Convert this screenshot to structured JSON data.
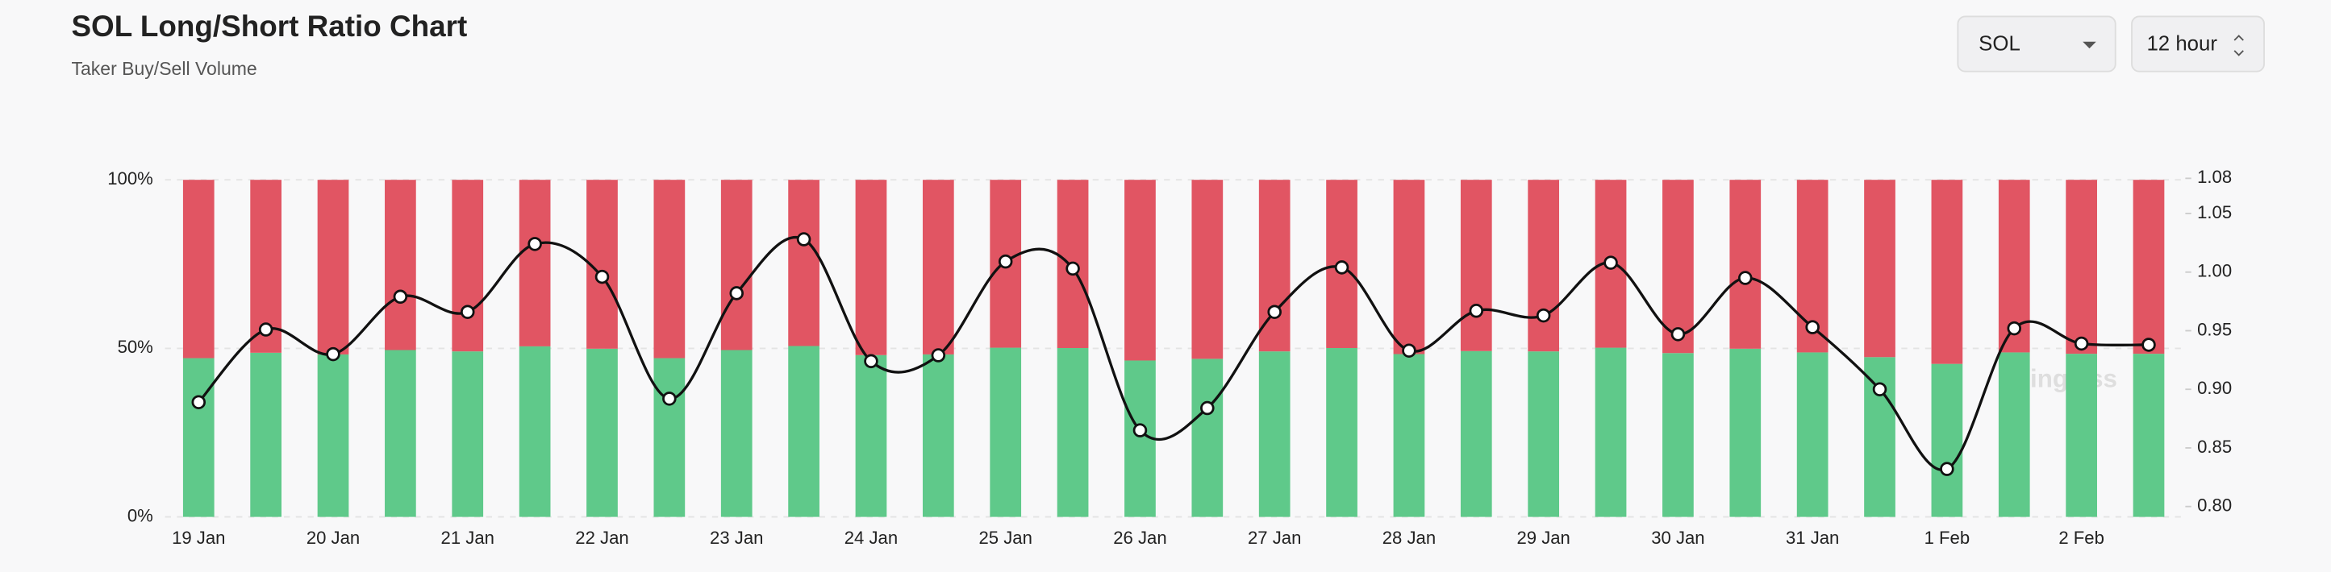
{
  "controls": {
    "symbol": "SOL",
    "interval": "12 hour"
  },
  "watermark": "coinglass",
  "chart_data": {
    "type": "stacked-bar-line",
    "title": "SOL Long/Short Ratio Chart",
    "subtitle": "Taker Buy/Sell Volume",
    "categories": [
      "19 Jan",
      null,
      "20 Jan",
      null,
      "21 Jan",
      null,
      "22 Jan",
      null,
      "23 Jan",
      null,
      "24 Jan",
      null,
      "25 Jan",
      null,
      "26 Jan",
      null,
      "27 Jan",
      null,
      "28 Jan",
      null,
      "29 Jan",
      null,
      "30 Jan",
      null,
      "31 Jan",
      null,
      "1 Feb",
      null,
      "2 Feb",
      null
    ],
    "series": [
      {
        "color": "#5fc98a",
        "values": [
          47.1,
          48.7,
          48.2,
          49.5,
          49.1,
          50.6,
          49.9,
          47.1,
          49.5,
          50.7,
          48.0,
          48.2,
          50.2,
          50.1,
          46.4,
          46.9,
          49.1,
          50.1,
          48.3,
          49.2,
          49.1,
          50.2,
          48.6,
          49.9,
          48.8,
          47.4,
          45.4,
          48.8,
          48.4,
          48.4
        ]
      },
      {
        "color": "#e15563",
        "values": [
          52.9,
          51.3,
          51.8,
          50.5,
          50.9,
          49.4,
          50.1,
          52.9,
          50.5,
          49.3,
          52.0,
          51.8,
          49.8,
          49.9,
          53.6,
          53.1,
          50.9,
          49.9,
          51.7,
          50.8,
          50.9,
          49.8,
          51.4,
          50.1,
          51.2,
          52.6,
          54.6,
          51.2,
          51.6,
          51.6
        ]
      },
      {
        "color": "#111111",
        "axis": "y2",
        "values": [
          0.889,
          0.951,
          0.93,
          0.979,
          0.966,
          1.024,
          0.996,
          0.892,
          0.982,
          1.028,
          0.924,
          0.929,
          1.009,
          1.003,
          0.865,
          0.884,
          0.966,
          1.004,
          0.933,
          0.967,
          0.963,
          1.008,
          0.947,
          0.995,
          0.953,
          0.9,
          0.832,
          0.952,
          0.939,
          0.938
        ]
      }
    ],
    "ylim": [
      0,
      100
    ],
    "yticks": [
      {
        "value": 0,
        "label": "0%"
      },
      {
        "value": 50,
        "label": "50%"
      },
      {
        "value": 100,
        "label": "100%"
      }
    ],
    "y2lim": [
      0.8,
      1.08
    ],
    "y2ticks": [
      {
        "value": 0.8,
        "label": "0.80"
      },
      0.85,
      {
        "value": 0.9,
        "label": "0.90"
      },
      0.95,
      {
        "value": 1.0,
        "label": "1.00"
      },
      1.05,
      1.08
    ],
    "grid": true
  }
}
